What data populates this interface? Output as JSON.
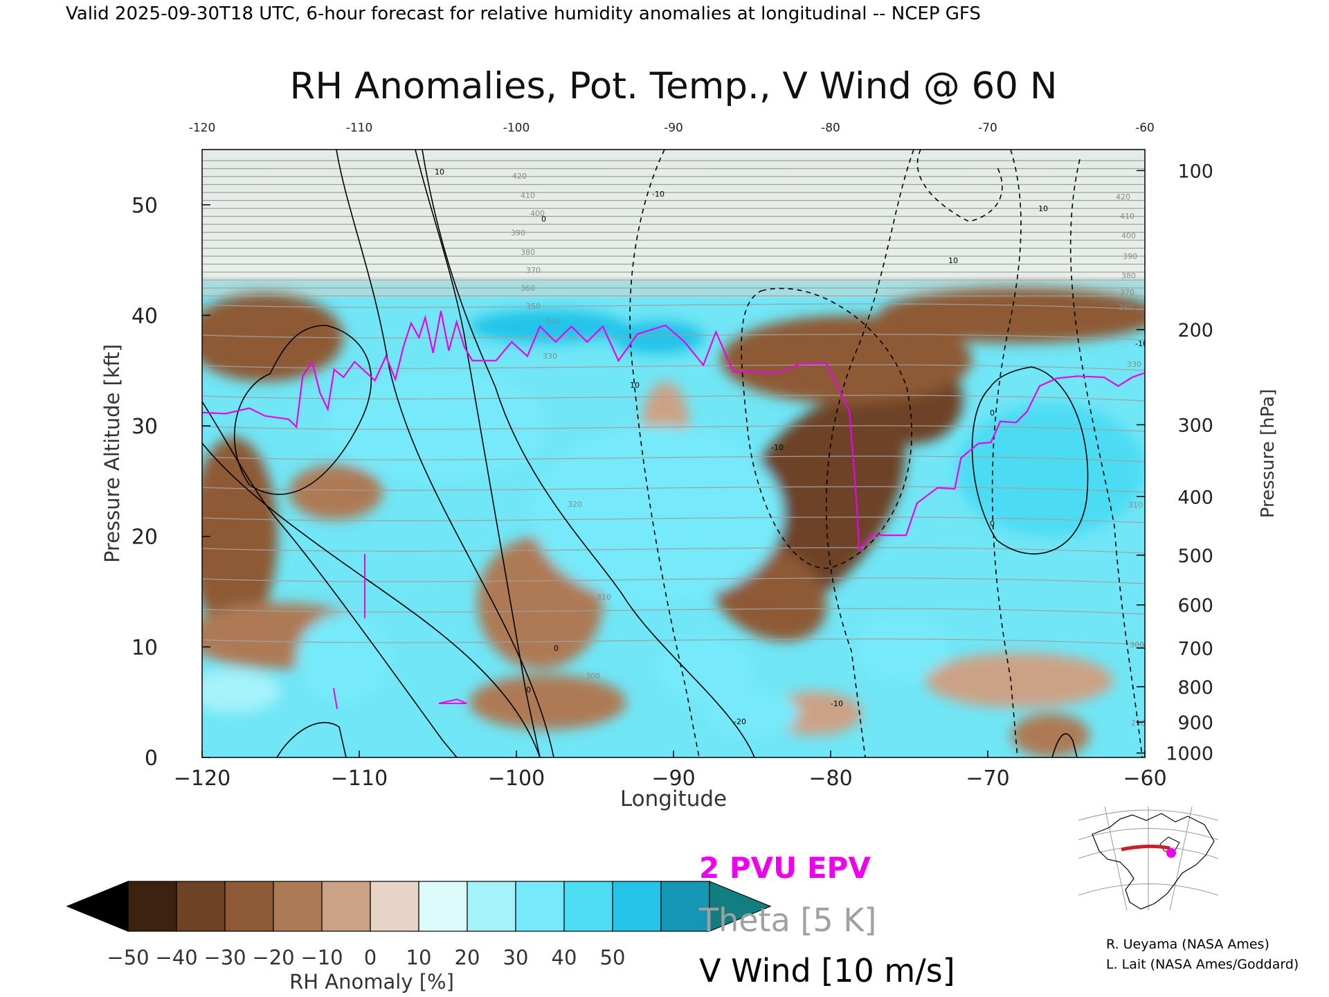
{
  "header": {
    "valid_line": "Valid 2025-09-30T18 UTC, 6-hour forecast for relative humidity anomalies at longitudinal -- NCEP GFS",
    "title": "RH Anomalies, Pot. Temp., V Wind @ 60 N"
  },
  "chart_data": {
    "type": "heatmap",
    "title": "RH Anomalies, Pot. Temp., V Wind @ 60 N",
    "xlabel": "Longitude",
    "ylabel_left": "Pressure Altitude [kft]",
    "ylabel_right": "Pressure [hPa]",
    "xlim": [
      -120,
      -60
    ],
    "ylim_kft": [
      0,
      55
    ],
    "x_ticks": [
      -120,
      -110,
      -100,
      -90,
      -80,
      -70,
      -60
    ],
    "x_tick_labels": [
      "−120",
      "−110",
      "−100",
      "−90",
      "−80",
      "−70",
      "−60"
    ],
    "y_ticks_kft": [
      0,
      10,
      20,
      30,
      40,
      50
    ],
    "pressure_levels": [
      {
        "hPa": "100",
        "kft": 53.1
      },
      {
        "hPa": "200",
        "kft": 38.7
      },
      {
        "hPa": "300",
        "kft": 30.1
      },
      {
        "hPa": "400",
        "kft": 23.6
      },
      {
        "hPa": "500",
        "kft": 18.3
      },
      {
        "hPa": "600",
        "kft": 13.8
      },
      {
        "hPa": "700",
        "kft": 9.9
      },
      {
        "hPa": "800",
        "kft": 6.4
      },
      {
        "hPa": "900",
        "kft": 3.2
      },
      {
        "hPa": "1000",
        "kft": 0.4
      }
    ],
    "rh_anomaly_regions": [
      {
        "lon": -81,
        "kft": 23,
        "rx": 4.5,
        "ry": 11,
        "rot": 35,
        "value": -50
      },
      {
        "lon": -75.5,
        "kft": 33,
        "rx": 4,
        "ry": 4.5,
        "rot": 20,
        "value": -50
      },
      {
        "lon": -79,
        "kft": 36,
        "rx": 8,
        "ry": 4,
        "rot": 0,
        "value": -35
      },
      {
        "lon": -84,
        "kft": 15,
        "rx": 4,
        "ry": 4,
        "rot": 30,
        "value": -40
      },
      {
        "lon": -118.5,
        "kft": 18,
        "rx": 1.3,
        "ry": 4,
        "rot": 0,
        "value": -50
      },
      {
        "lon": -118,
        "kft": 20,
        "rx": 2.8,
        "ry": 9,
        "rot": 0,
        "value": -40
      },
      {
        "lon": -116,
        "kft": 38,
        "rx": 5,
        "ry": 4,
        "rot": 0,
        "value": -35
      },
      {
        "lon": -115,
        "kft": 11,
        "rx": 6,
        "ry": 3,
        "rot": 0,
        "value": -30
      },
      {
        "lon": -68,
        "kft": 40,
        "rx": 9,
        "ry": 2.5,
        "rot": 0,
        "value": -35
      },
      {
        "lon": -98.5,
        "kft": 14,
        "rx": 4,
        "ry": 6,
        "rot": 0,
        "value": -25
      },
      {
        "lon": -98,
        "kft": 5,
        "rx": 5,
        "ry": 2.5,
        "rot": 0,
        "value": -25
      },
      {
        "lon": -90.5,
        "kft": 30,
        "rx": 1.5,
        "ry": 4,
        "rot": 0,
        "value": -20
      },
      {
        "lon": -111.5,
        "kft": 24,
        "rx": 3,
        "ry": 2.5,
        "rot": 0,
        "value": -25
      },
      {
        "lon": -68,
        "kft": 7,
        "rx": 6,
        "ry": 2.5,
        "rot": 0,
        "value": -20
      },
      {
        "lon": -66,
        "kft": 2,
        "rx": 2.5,
        "ry": 2,
        "rot": 0,
        "value": -25
      },
      {
        "lon": -104,
        "kft": 30,
        "rx": 1.5,
        "ry": 2,
        "rot": 0,
        "value": -20
      },
      {
        "lon": -81,
        "kft": 4,
        "rx": 3,
        "ry": 2,
        "rot": 0,
        "value": -15
      },
      {
        "lon": -98,
        "kft": 39,
        "rx": 5,
        "ry": 1.5,
        "rot": 0,
        "value": 45
      },
      {
        "lon": -91,
        "kft": 38,
        "rx": 3,
        "ry": 1.5,
        "rot": 0,
        "value": 40
      },
      {
        "lon": -105,
        "kft": 30,
        "rx": 7,
        "ry": 5,
        "rot": 0,
        "value": 20
      },
      {
        "lon": -91,
        "kft": 22,
        "rx": 8,
        "ry": 8,
        "rot": 0,
        "value": 20
      },
      {
        "lon": -66,
        "kft": 26,
        "rx": 6,
        "ry": 6,
        "rot": 0,
        "value": 30
      },
      {
        "lon": -111,
        "kft": 9,
        "rx": 3,
        "ry": 4,
        "rot": 0,
        "value": 25
      },
      {
        "lon": -85,
        "kft": 4,
        "rx": 3,
        "ry": 2,
        "rot": 0,
        "value": 25
      },
      {
        "lon": -75.5,
        "kft": 10,
        "rx": 3,
        "ry": 3,
        "rot": 0,
        "value": 25
      },
      {
        "lon": -88,
        "kft": 8,
        "rx": 3,
        "ry": 3,
        "rot": 0,
        "value": 20
      },
      {
        "lon": -118,
        "kft": 6,
        "rx": 3,
        "ry": 2,
        "rot": 0,
        "value": 15
      }
    ],
    "series": [
      {
        "name": "2 PVU EPV",
        "color": "#ee00ee",
        "points": [
          [
            -120,
            31.2
          ],
          [
            -118.5,
            31.1
          ],
          [
            -117,
            31.6
          ],
          [
            -116,
            30.9
          ],
          [
            -114.5,
            30.6
          ],
          [
            -114,
            29.9
          ],
          [
            -113.6,
            34.5
          ],
          [
            -113,
            35.8
          ],
          [
            -112.5,
            33
          ],
          [
            -112,
            31.5
          ],
          [
            -111.6,
            35.1
          ],
          [
            -111,
            34.4
          ],
          [
            -110.3,
            35.8
          ],
          [
            -109,
            34.1
          ],
          [
            -108.3,
            36.3
          ],
          [
            -107.7,
            34.2
          ],
          [
            -107.2,
            37.1
          ],
          [
            -106.7,
            39.3
          ],
          [
            -106.2,
            38
          ],
          [
            -105.8,
            39.8
          ],
          [
            -105.3,
            36.6
          ],
          [
            -104.8,
            40.4
          ],
          [
            -104.3,
            36.8
          ],
          [
            -103.8,
            39.4
          ],
          [
            -103.3,
            37.1
          ],
          [
            -102.8,
            35.9
          ],
          [
            -101.3,
            35.9
          ],
          [
            -100.3,
            37.6
          ],
          [
            -99.3,
            36.3
          ],
          [
            -98.5,
            39
          ],
          [
            -97.5,
            37.6
          ],
          [
            -96.5,
            39
          ],
          [
            -95.5,
            37.6
          ],
          [
            -94.5,
            39
          ],
          [
            -93.5,
            35.9
          ],
          [
            -92.3,
            38.3
          ],
          [
            -90.5,
            39.1
          ],
          [
            -89.3,
            37.6
          ],
          [
            -88.1,
            35.5
          ],
          [
            -87.3,
            38.5
          ],
          [
            -86.2,
            34.9
          ],
          [
            -85,
            34.9
          ],
          [
            -83.3,
            34.8
          ],
          [
            -82,
            35.6
          ],
          [
            -80.3,
            35.7
          ],
          [
            -79.5,
            33.5
          ],
          [
            -78.8,
            31.3
          ],
          [
            -78.5,
            26
          ],
          [
            -78.3,
            22
          ],
          [
            -78.2,
            18.8
          ],
          [
            -77.3,
            20.2
          ],
          [
            -76.6,
            20.1
          ],
          [
            -75.2,
            20.1
          ],
          [
            -74.5,
            23
          ],
          [
            -73.2,
            24.4
          ],
          [
            -72.1,
            24.3
          ],
          [
            -71.7,
            27.1
          ],
          [
            -70.6,
            28.4
          ],
          [
            -69.8,
            28.5
          ],
          [
            -69.2,
            30.4
          ],
          [
            -68.2,
            30.3
          ],
          [
            -67.5,
            31.3
          ],
          [
            -66.7,
            33.6
          ],
          [
            -65.6,
            34.3
          ],
          [
            -64.3,
            34.5
          ],
          [
            -62.6,
            34.4
          ],
          [
            -61.7,
            33.6
          ],
          [
            -60.8,
            34.4
          ],
          [
            -60,
            34.8
          ]
        ]
      }
    ],
    "wind_contour_labels": [
      "10",
      "0",
      "-10",
      "-20",
      "10",
      "0",
      "-10",
      "10",
      "0",
      "-10",
      "10",
      "0",
      "-10",
      "0",
      "-10"
    ],
    "theta_labels": [
      "420",
      "410",
      "400",
      "390",
      "380",
      "370",
      "360",
      "350",
      "340",
      "330",
      "320",
      "310",
      "300",
      "290",
      "420",
      "410",
      "400",
      "390",
      "380",
      "370",
      "360",
      "330",
      "310",
      "300",
      "290"
    ],
    "colorbar": {
      "label": "RH Anomaly [%]",
      "tick_labels": [
        "−50",
        "−40",
        "−30",
        "−20",
        "−10",
        "0",
        "10",
        "20",
        "30",
        "40",
        "50"
      ],
      "values": [
        -50,
        -40,
        -30,
        -20,
        -10,
        0,
        10,
        20,
        30,
        40,
        50
      ],
      "colors": [
        "#000000",
        "#3e2210",
        "#6d4225",
        "#8e5a35",
        "#ad7a55",
        "#cca286",
        "#e8d4c6",
        "#ddfafa",
        "#a4f2fa",
        "#76eafa",
        "#4cdcf4",
        "#23c4e8",
        "#1596b5",
        "#127e80"
      ]
    },
    "legend": {
      "pv": "2 PVU EPV",
      "theta": "Theta [5 K]",
      "wind": "V Wind [10 m/s]",
      "pv_color": "#ee00ee",
      "theta_color": "#a0a0a0",
      "wind_color": "#000000"
    }
  },
  "credits": {
    "line1": "R. Ueyama (NASA Ames)",
    "line2": "L. Lait (NASA Ames/Goddard)"
  }
}
